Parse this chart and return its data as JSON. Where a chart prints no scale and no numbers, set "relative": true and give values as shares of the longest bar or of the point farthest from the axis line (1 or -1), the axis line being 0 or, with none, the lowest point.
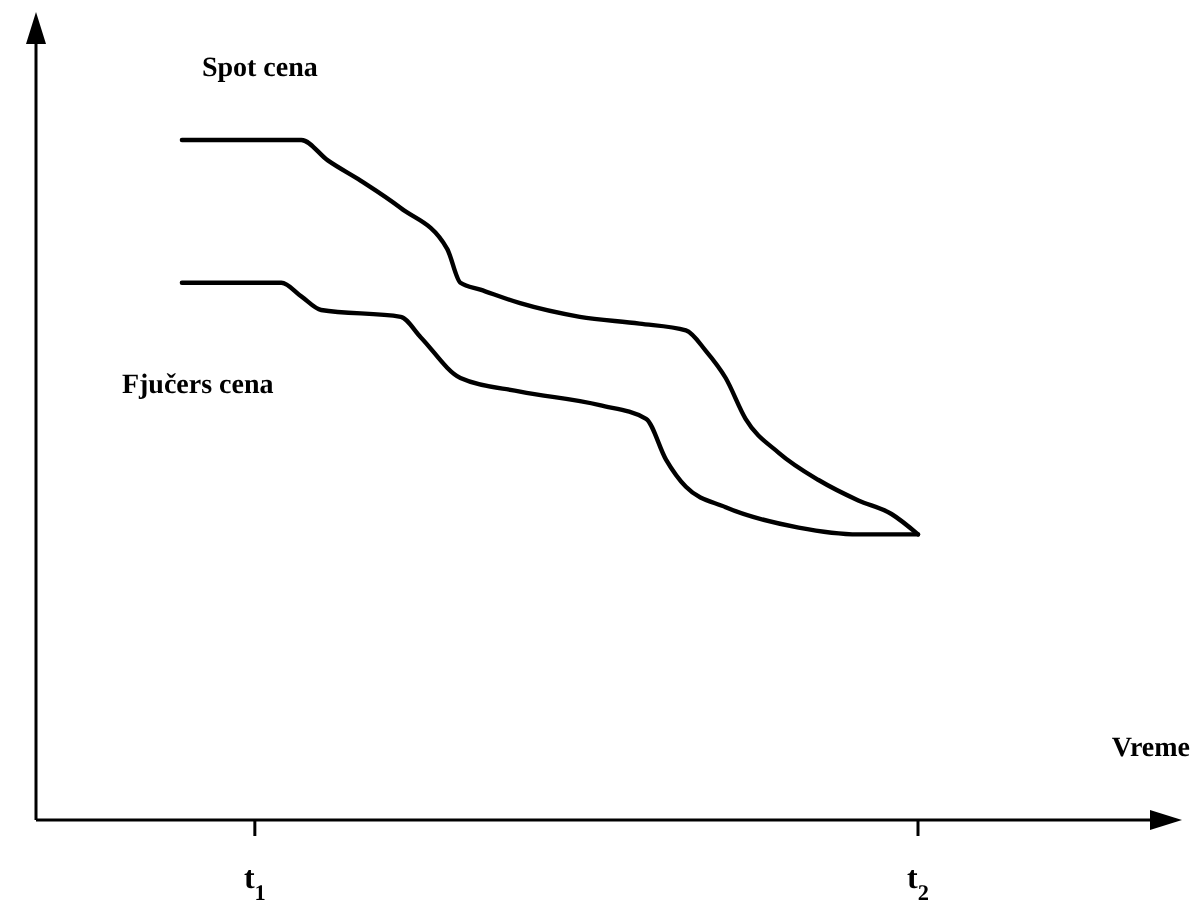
{
  "chart_data": {
    "type": "line",
    "relative": true,
    "xlabel": "Vreme",
    "xlim": [
      0.67,
      2.38
    ],
    "xticks": [
      {
        "value": 1,
        "label": "t$_{1}$"
      },
      {
        "value": 2,
        "label": "t$_{2}$"
      }
    ],
    "marker": "none",
    "line_style": "solid",
    "series": [
      {
        "name": "Spot cena",
        "color": "#000000",
        "x": [
          0.89,
          1.07,
          1.11,
          1.16,
          1.22,
          1.29,
          1.31,
          1.34,
          1.4,
          1.49,
          1.58,
          1.65,
          1.68,
          1.71,
          1.74,
          1.79,
          1.85,
          1.91,
          1.96,
          2.0
        ],
        "values": [
          1.0,
          1.0,
          0.97,
          0.94,
          0.9,
          0.84,
          0.79,
          0.78,
          0.76,
          0.74,
          0.73,
          0.72,
          0.69,
          0.65,
          0.59,
          0.54,
          0.5,
          0.47,
          0.45,
          0.42
        ]
      },
      {
        "name": "Fjučers cena",
        "color": "#000000",
        "x": [
          0.89,
          1.04,
          1.07,
          1.1,
          1.22,
          1.25,
          1.31,
          1.4,
          1.52,
          1.59,
          1.62,
          1.65,
          1.71,
          1.82,
          1.91,
          2.0
        ],
        "values": [
          0.79,
          0.79,
          0.77,
          0.75,
          0.74,
          0.71,
          0.65,
          0.63,
          0.61,
          0.59,
          0.53,
          0.49,
          0.46,
          0.43,
          0.42,
          0.42
        ]
      }
    ]
  }
}
